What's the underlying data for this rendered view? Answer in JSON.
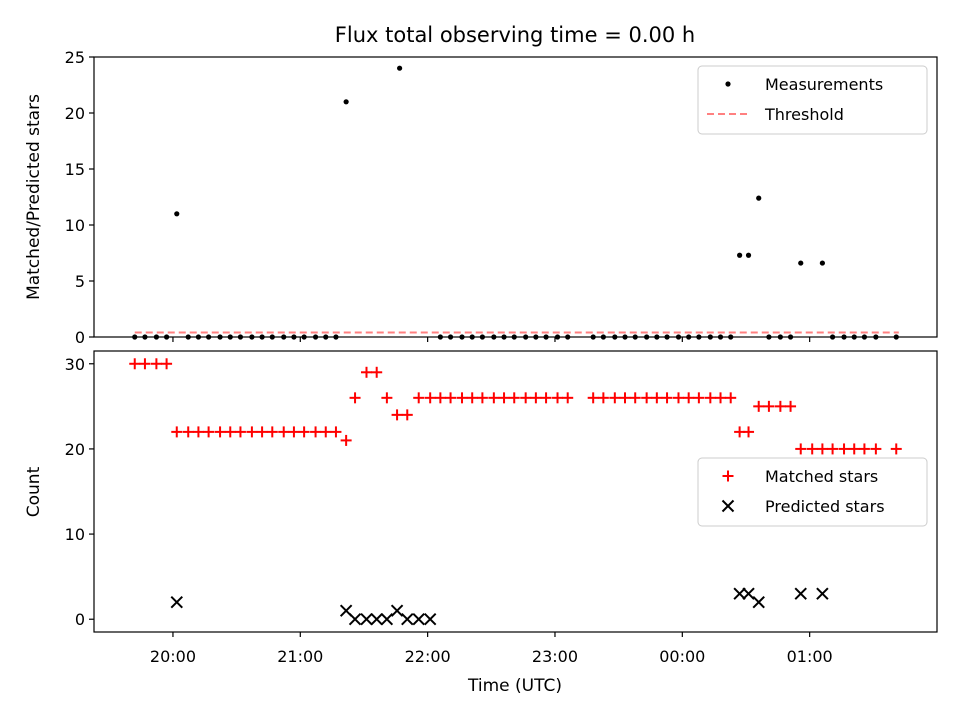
{
  "figure": {
    "title": "Flux total observing time = 0.00 h"
  },
  "chart_data": [
    {
      "type": "scatter",
      "ylabel": "Matched/Predicted stars",
      "xlabel": "",
      "ylim": [
        0,
        25
      ],
      "yticks": [
        0,
        5,
        10,
        15,
        20,
        25
      ],
      "xlim_hours": [
        19.38,
        26.0
      ],
      "grid": false,
      "legend_position": "top-right",
      "legend": [
        {
          "label": "Measurements",
          "marker": "dot",
          "color": "#000000"
        },
        {
          "label": "Threshold",
          "marker": "dashed-line",
          "color": "#ff8080"
        }
      ],
      "threshold": {
        "name": "Threshold",
        "y": 0.4,
        "x_range": [
          19.7,
          25.7
        ],
        "color": "#ff8080"
      },
      "series": [
        {
          "name": "Measurements",
          "color": "#000000",
          "points": [
            [
              19.7,
              0
            ],
            [
              19.78,
              0
            ],
            [
              19.87,
              0
            ],
            [
              19.95,
              0
            ],
            [
              20.03,
              11
            ],
            [
              20.12,
              0
            ],
            [
              20.2,
              0
            ],
            [
              20.28,
              0
            ],
            [
              20.37,
              0
            ],
            [
              20.45,
              0
            ],
            [
              20.53,
              0
            ],
            [
              20.62,
              0
            ],
            [
              20.7,
              0
            ],
            [
              20.78,
              0
            ],
            [
              20.87,
              0
            ],
            [
              20.95,
              0
            ],
            [
              21.03,
              0
            ],
            [
              21.12,
              0
            ],
            [
              21.2,
              0
            ],
            [
              21.28,
              0
            ],
            [
              21.36,
              21
            ],
            [
              21.78,
              24
            ],
            [
              22.1,
              0
            ],
            [
              22.18,
              0
            ],
            [
              22.27,
              0
            ],
            [
              22.35,
              0
            ],
            [
              22.43,
              0
            ],
            [
              22.52,
              0
            ],
            [
              22.6,
              0
            ],
            [
              22.68,
              0
            ],
            [
              22.77,
              0
            ],
            [
              22.85,
              0
            ],
            [
              22.93,
              0
            ],
            [
              23.02,
              0
            ],
            [
              23.1,
              0
            ],
            [
              23.3,
              0
            ],
            [
              23.38,
              0
            ],
            [
              23.47,
              0
            ],
            [
              23.55,
              0
            ],
            [
              23.63,
              0
            ],
            [
              23.72,
              0
            ],
            [
              23.8,
              0
            ],
            [
              23.88,
              0
            ],
            [
              23.97,
              0
            ],
            [
              24.05,
              0
            ],
            [
              24.13,
              0
            ],
            [
              24.22,
              0
            ],
            [
              24.3,
              0
            ],
            [
              24.38,
              0
            ],
            [
              24.45,
              7.3
            ],
            [
              24.52,
              7.3
            ],
            [
              24.6,
              12.4
            ],
            [
              24.68,
              0
            ],
            [
              24.77,
              0
            ],
            [
              24.85,
              0
            ],
            [
              24.93,
              6.6
            ],
            [
              25.1,
              6.6
            ],
            [
              25.18,
              0
            ],
            [
              25.27,
              0
            ],
            [
              25.35,
              0
            ],
            [
              25.43,
              0
            ],
            [
              25.52,
              0
            ],
            [
              25.68,
              0
            ]
          ]
        }
      ]
    },
    {
      "type": "scatter",
      "xlabel": "Time (UTC)",
      "ylabel": "Count",
      "ylim": [
        -1.5,
        31.5
      ],
      "yticks": [
        0,
        10,
        20,
        30
      ],
      "xlim_hours": [
        19.38,
        26.0
      ],
      "xticks": [
        {
          "hour": 20,
          "label": "20:00"
        },
        {
          "hour": 21,
          "label": "21:00"
        },
        {
          "hour": 22,
          "label": "22:00"
        },
        {
          "hour": 23,
          "label": "23:00"
        },
        {
          "hour": 24,
          "label": "00:00"
        },
        {
          "hour": 25,
          "label": "01:00"
        }
      ],
      "grid": false,
      "legend_position": "center-right",
      "legend": [
        {
          "label": "Matched stars",
          "marker": "plus",
          "color": "#ff0000"
        },
        {
          "label": "Predicted stars",
          "marker": "x",
          "color": "#000000"
        }
      ],
      "series": [
        {
          "name": "Matched stars",
          "marker": "plus",
          "color": "#ff0000",
          "points": [
            [
              19.7,
              30
            ],
            [
              19.78,
              30
            ],
            [
              19.87,
              30
            ],
            [
              19.95,
              30
            ],
            [
              20.03,
              22
            ],
            [
              20.12,
              22
            ],
            [
              20.2,
              22
            ],
            [
              20.28,
              22
            ],
            [
              20.37,
              22
            ],
            [
              20.45,
              22
            ],
            [
              20.53,
              22
            ],
            [
              20.62,
              22
            ],
            [
              20.7,
              22
            ],
            [
              20.78,
              22
            ],
            [
              20.87,
              22
            ],
            [
              20.95,
              22
            ],
            [
              21.03,
              22
            ],
            [
              21.12,
              22
            ],
            [
              21.2,
              22
            ],
            [
              21.28,
              22
            ],
            [
              21.36,
              21
            ],
            [
              21.43,
              26
            ],
            [
              21.52,
              29
            ],
            [
              21.6,
              29
            ],
            [
              21.68,
              26
            ],
            [
              21.76,
              24
            ],
            [
              21.84,
              24
            ],
            [
              21.93,
              26
            ],
            [
              22.02,
              26
            ],
            [
              22.1,
              26
            ],
            [
              22.18,
              26
            ],
            [
              22.27,
              26
            ],
            [
              22.35,
              26
            ],
            [
              22.43,
              26
            ],
            [
              22.52,
              26
            ],
            [
              22.6,
              26
            ],
            [
              22.68,
              26
            ],
            [
              22.77,
              26
            ],
            [
              22.85,
              26
            ],
            [
              22.93,
              26
            ],
            [
              23.02,
              26
            ],
            [
              23.1,
              26
            ],
            [
              23.3,
              26
            ],
            [
              23.38,
              26
            ],
            [
              23.47,
              26
            ],
            [
              23.55,
              26
            ],
            [
              23.63,
              26
            ],
            [
              23.72,
              26
            ],
            [
              23.8,
              26
            ],
            [
              23.88,
              26
            ],
            [
              23.97,
              26
            ],
            [
              24.05,
              26
            ],
            [
              24.13,
              26
            ],
            [
              24.22,
              26
            ],
            [
              24.3,
              26
            ],
            [
              24.38,
              26
            ],
            [
              24.45,
              22
            ],
            [
              24.52,
              22
            ],
            [
              24.6,
              25
            ],
            [
              24.68,
              25
            ],
            [
              24.77,
              25
            ],
            [
              24.85,
              25
            ],
            [
              24.93,
              20
            ],
            [
              25.02,
              20
            ],
            [
              25.1,
              20
            ],
            [
              25.18,
              20
            ],
            [
              25.27,
              20
            ],
            [
              25.35,
              20
            ],
            [
              25.43,
              20
            ],
            [
              25.52,
              20
            ],
            [
              25.68,
              20
            ]
          ]
        },
        {
          "name": "Predicted stars",
          "marker": "x",
          "color": "#000000",
          "points": [
            [
              20.03,
              2
            ],
            [
              21.36,
              1
            ],
            [
              21.43,
              0
            ],
            [
              21.52,
              0
            ],
            [
              21.6,
              0
            ],
            [
              21.68,
              0
            ],
            [
              21.76,
              1
            ],
            [
              21.84,
              0
            ],
            [
              21.93,
              0
            ],
            [
              22.02,
              0
            ],
            [
              24.45,
              3
            ],
            [
              24.52,
              3
            ],
            [
              24.6,
              2
            ],
            [
              24.93,
              3
            ],
            [
              25.1,
              3
            ]
          ]
        }
      ]
    }
  ]
}
